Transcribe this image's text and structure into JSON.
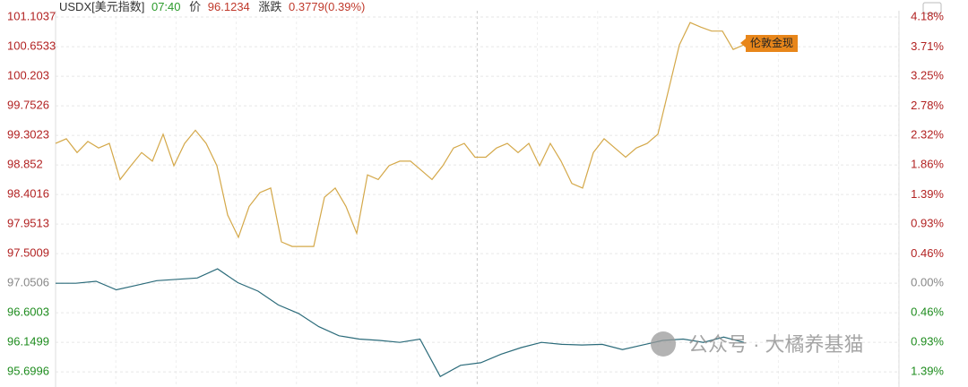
{
  "header": {
    "symbol": "USDX[美元指数]",
    "time": "07:40",
    "price_label": "价",
    "price": "96.1234",
    "change_label": "涨跌",
    "change": "0.3779(0.39%)"
  },
  "watermark": "公众号 · 大橘养基猫",
  "chart_data": {
    "type": "line",
    "annotation": "伦敦金现",
    "ylim": [
      95.47,
      101.2
    ],
    "yticks": [
      101.1037,
      100.6533,
      100.203,
      99.7526,
      99.3023,
      98.852,
      98.4016,
      97.9513,
      97.5009,
      97.0506,
      96.6003,
      96.1499,
      95.6996
    ],
    "y2lim": [
      -1.63,
      4.28
    ],
    "y2ticks": [
      {
        "value": 4.18,
        "label": "4.18%"
      },
      {
        "value": 3.71,
        "label": "3.71%"
      },
      {
        "value": 3.25,
        "label": "3.25%"
      },
      {
        "value": 2.78,
        "label": "2.78%"
      },
      {
        "value": 2.32,
        "label": "2.32%"
      },
      {
        "value": 1.86,
        "label": "1.86%"
      },
      {
        "value": 1.39,
        "label": "1.39%"
      },
      {
        "value": 0.93,
        "label": "0.93%"
      },
      {
        "value": 0.46,
        "label": "0.46%"
      },
      {
        "value": 0,
        "label": "0.00%"
      },
      {
        "value": -0.46,
        "label": "0.46%"
      },
      {
        "value": -0.93,
        "label": "0.93%"
      },
      {
        "value": -1.39,
        "label": "1.39%"
      }
    ],
    "grid": true,
    "series": [
      {
        "color": "#d4a849",
        "values": [
          99.18,
          99.25,
          99.04,
          99.21,
          99.11,
          99.18,
          98.63,
          98.84,
          99.04,
          98.91,
          99.32,
          98.84,
          99.18,
          99.38,
          99.18,
          98.84,
          98.09,
          97.75,
          98.22,
          98.43,
          98.5,
          97.68,
          97.61,
          97.61,
          97.61,
          98.36,
          98.5,
          98.22,
          97.81,
          98.7,
          98.63,
          98.84,
          98.91,
          98.91,
          98.77,
          98.63,
          98.84,
          99.11,
          99.18,
          98.97,
          98.97,
          99.11,
          99.18,
          99.04,
          99.18,
          98.84,
          99.18,
          98.91,
          98.57,
          98.5,
          99.04,
          99.25,
          99.11,
          98.97,
          99.11,
          99.18,
          99.32,
          100.0,
          100.68,
          101.02,
          100.95,
          100.89,
          100.89,
          100.61,
          100.68
        ]
      },
      {
        "color": "#2b6b7a",
        "values": [
          97.05,
          97.05,
          97.08,
          96.95,
          97.02,
          97.09,
          97.11,
          97.13,
          97.27,
          97.06,
          96.93,
          96.72,
          96.59,
          96.39,
          96.25,
          96.2,
          96.18,
          96.15,
          96.2,
          95.63,
          95.8,
          95.84,
          95.97,
          96.07,
          96.15,
          96.12,
          96.11,
          96.12,
          96.04,
          96.11,
          96.18,
          96.2,
          96.15,
          96.23,
          96.15
        ]
      }
    ]
  }
}
